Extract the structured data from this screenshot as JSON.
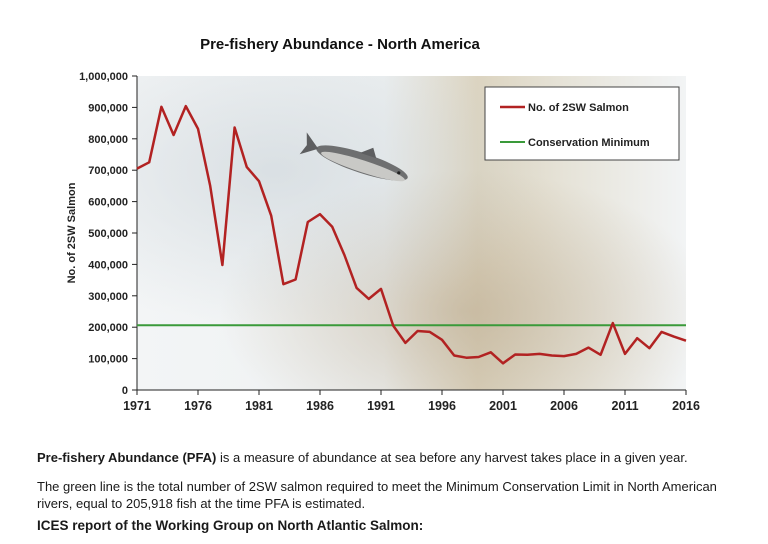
{
  "chart_data": {
    "type": "line",
    "title": "Pre-fishery Abundance - North America",
    "xlabel": "",
    "ylabel": "No. of 2SW Salmon",
    "xlim": [
      1971,
      2016
    ],
    "ylim": [
      0,
      1000000
    ],
    "y_ticks": [
      "0",
      "100,000",
      "200,000",
      "300,000",
      "400,000",
      "500,000",
      "600,000",
      "700,000",
      "800,000",
      "900,000",
      "1,000,000"
    ],
    "x_ticks": [
      "1971",
      "1976",
      "1981",
      "1986",
      "1991",
      "1996",
      "2001",
      "2006",
      "2011",
      "2016"
    ],
    "legend_position": "top-right",
    "grid": false,
    "series": [
      {
        "name": "No. of 2SW Salmon",
        "color": "#b22222",
        "x": [
          1971,
          1972,
          1973,
          1974,
          1975,
          1976,
          1977,
          1978,
          1979,
          1980,
          1981,
          1982,
          1983,
          1984,
          1985,
          1986,
          1987,
          1988,
          1989,
          1990,
          1991,
          1992,
          1993,
          1994,
          1995,
          1996,
          1997,
          1998,
          1999,
          2000,
          2001,
          2002,
          2003,
          2004,
          2005,
          2006,
          2007,
          2008,
          2009,
          2010,
          2011,
          2012,
          2013,
          2014,
          2015,
          2016
        ],
        "values": [
          705000,
          725000,
          902000,
          812000,
          904000,
          832000,
          650000,
          398000,
          836000,
          710000,
          665000,
          555000,
          337000,
          352000,
          535000,
          560000,
          520000,
          430000,
          325000,
          290000,
          322000,
          205000,
          150000,
          188000,
          185000,
          160000,
          110000,
          103000,
          105000,
          120000,
          85000,
          113000,
          112000,
          115000,
          110000,
          108000,
          115000,
          135000,
          112000,
          213000,
          115000,
          165000,
          133000,
          185000,
          170000,
          157000
        ]
      },
      {
        "name": "Conservation Minimum",
        "color": "#3a9a3a",
        "x": [
          1971,
          2016
        ],
        "values": [
          205918,
          205918
        ]
      }
    ]
  },
  "captions": {
    "pfa_term": "Pre-fishery Abundance (PFA)",
    "pfa_rest": " is a measure of abundance at sea before any harvest takes place in a given year.",
    "green_line_line1": "The green line is the total number of 2SW salmon required to meet the Minimum Conservation Limit in North American",
    "green_line_line2": "rivers, equal to 205,918 fish at the time PFA is estimated.",
    "source": "ICES report of the Working Group on North Atlantic Salmon:"
  }
}
